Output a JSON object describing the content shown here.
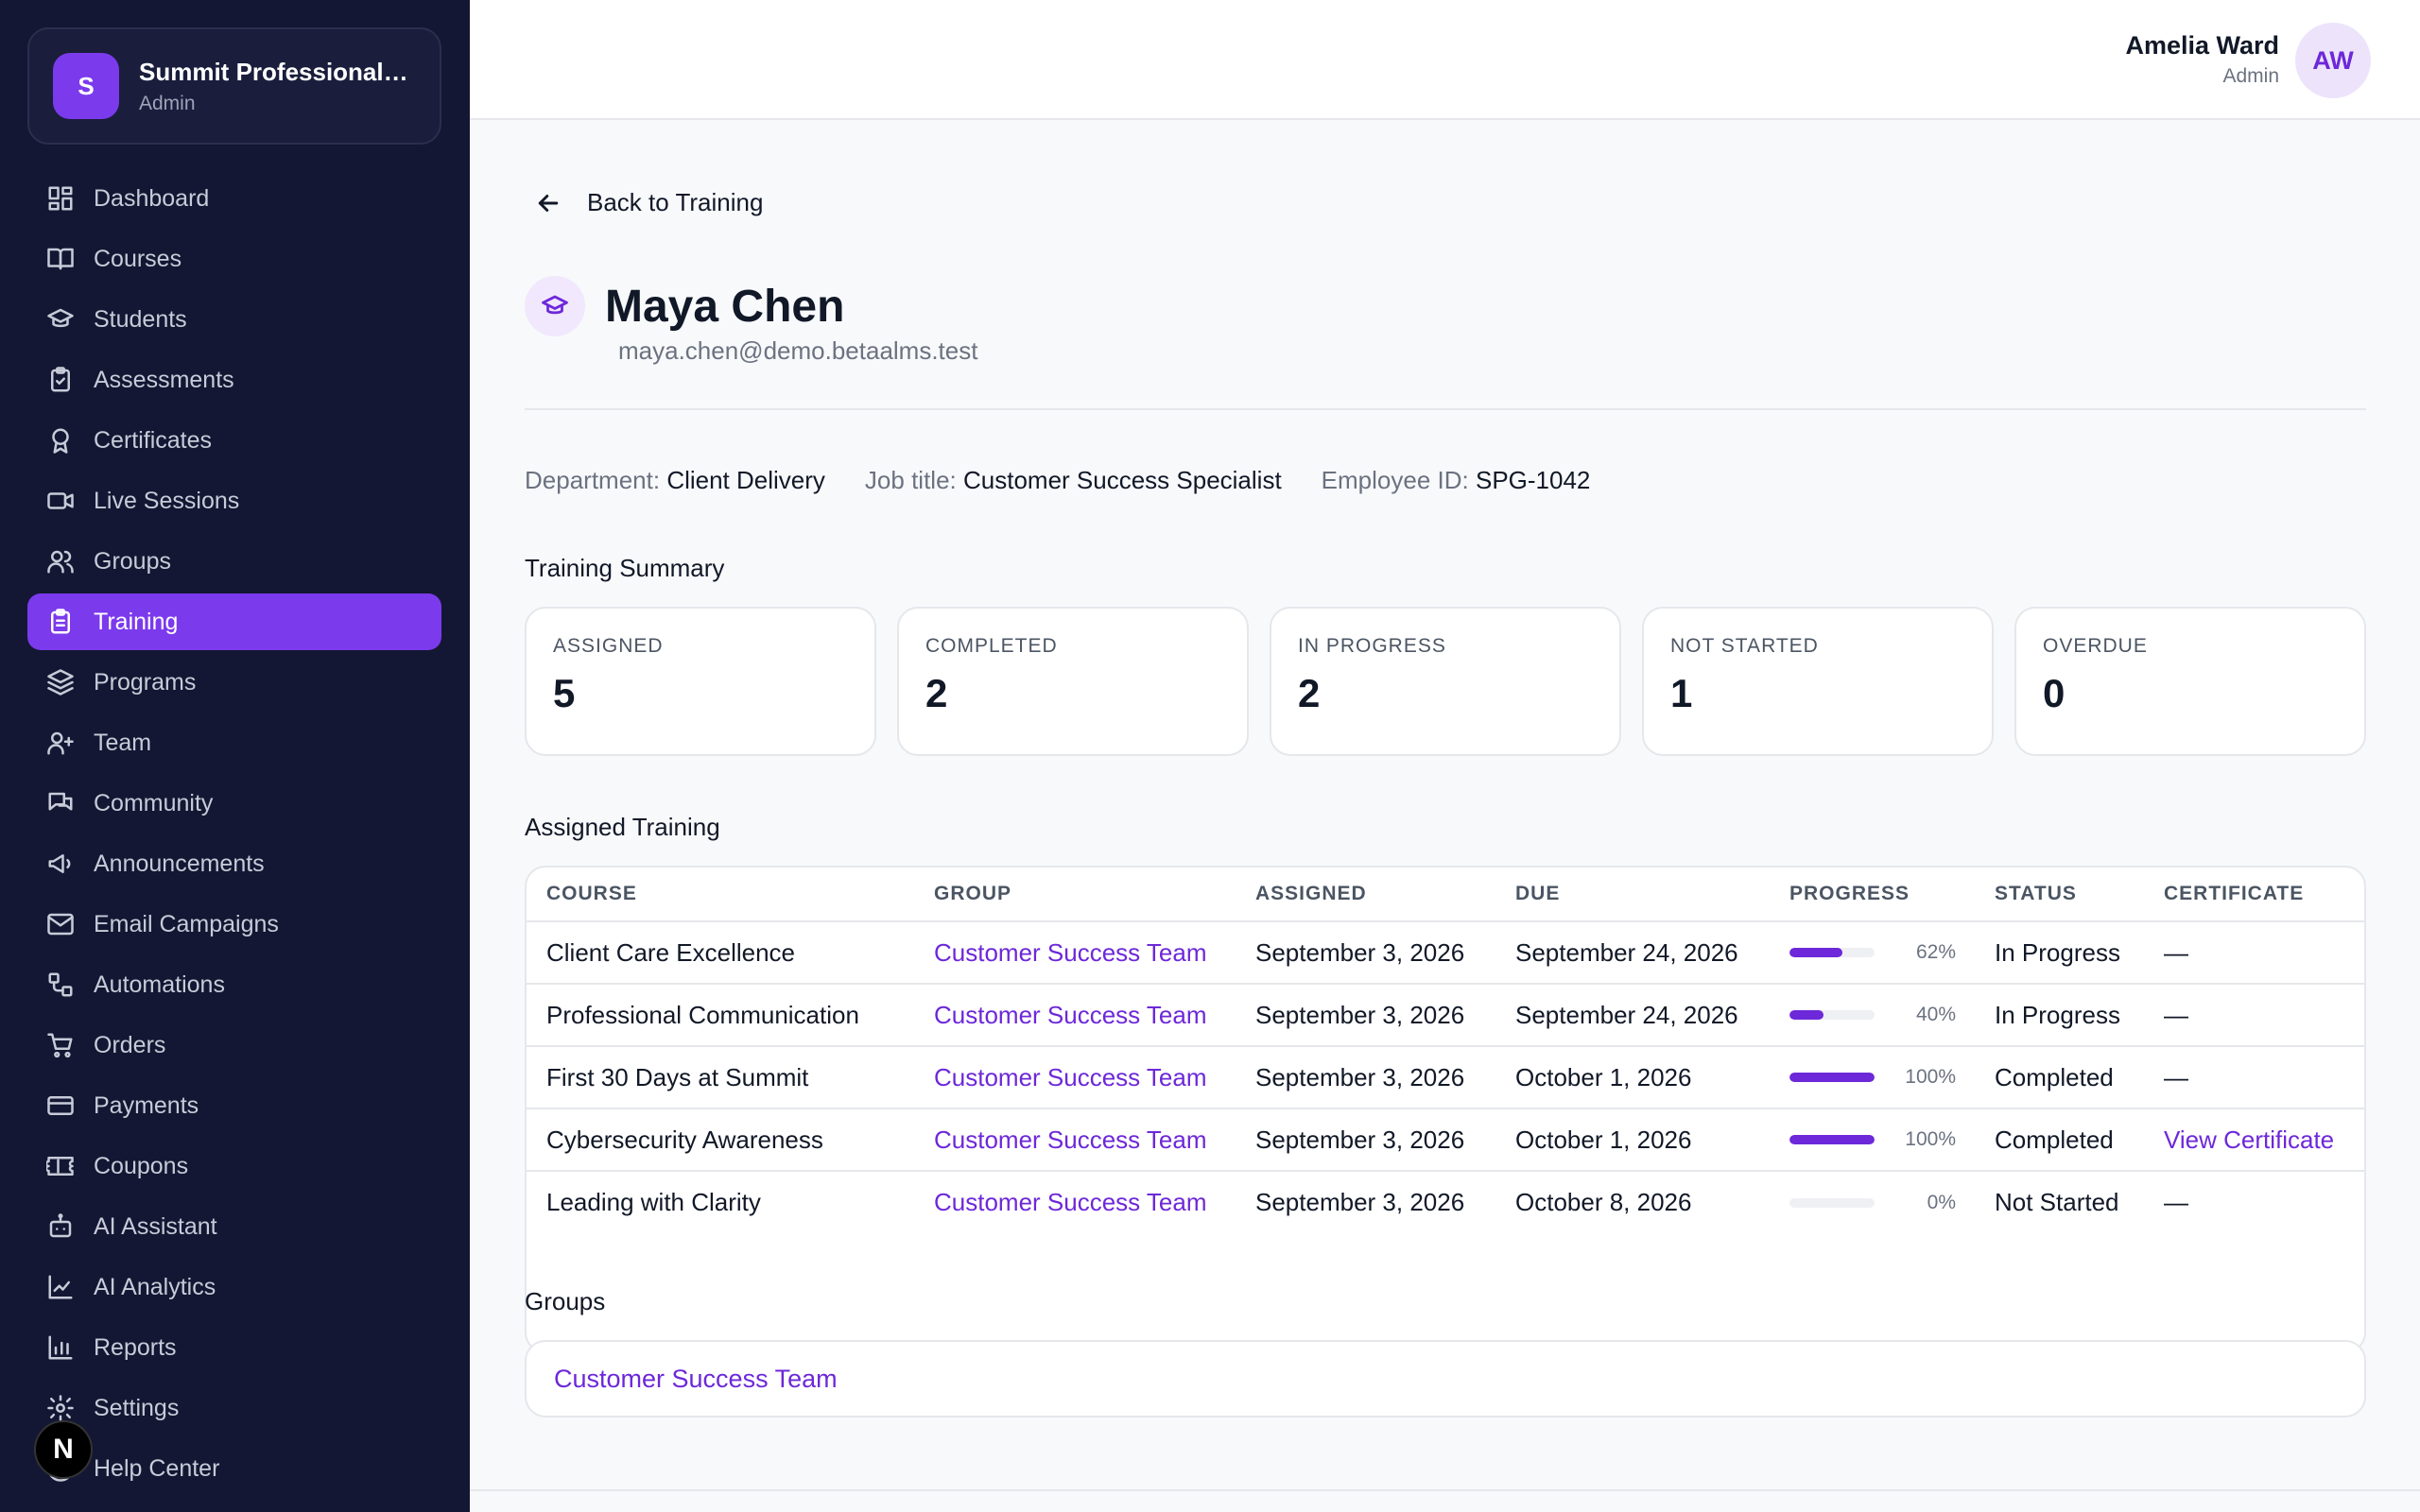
{
  "org": {
    "initial": "S",
    "name": "Summit Professional Group",
    "role": "Admin"
  },
  "nav": [
    {
      "label": "Dashboard",
      "icon": "dashboard-icon"
    },
    {
      "label": "Courses",
      "icon": "book-icon"
    },
    {
      "label": "Students",
      "icon": "graduation-cap-icon"
    },
    {
      "label": "Assessments",
      "icon": "clipboard-check-icon"
    },
    {
      "label": "Certificates",
      "icon": "award-icon"
    },
    {
      "label": "Live Sessions",
      "icon": "video-icon"
    },
    {
      "label": "Groups",
      "icon": "users-icon"
    },
    {
      "label": "Training",
      "icon": "clipboard-list-icon",
      "active": true
    },
    {
      "label": "Programs",
      "icon": "layers-icon"
    },
    {
      "label": "Team",
      "icon": "team-icon"
    },
    {
      "label": "Community",
      "icon": "messages-icon"
    },
    {
      "label": "Announcements",
      "icon": "megaphone-icon"
    },
    {
      "label": "Email Campaigns",
      "icon": "mail-icon"
    },
    {
      "label": "Automations",
      "icon": "workflow-icon"
    },
    {
      "label": "Orders",
      "icon": "cart-icon"
    },
    {
      "label": "Payments",
      "icon": "credit-card-icon"
    },
    {
      "label": "Coupons",
      "icon": "ticket-icon"
    },
    {
      "label": "AI Assistant",
      "icon": "bot-icon"
    },
    {
      "label": "AI Analytics",
      "icon": "line-chart-icon"
    },
    {
      "label": "Reports",
      "icon": "bar-chart-icon"
    },
    {
      "label": "Settings",
      "icon": "gear-icon"
    },
    {
      "label": "Help Center",
      "icon": "help-icon"
    }
  ],
  "dev_badge": "N",
  "user": {
    "name": "Amelia Ward",
    "role": "Admin",
    "initials": "AW"
  },
  "back_label": "Back to Training",
  "profile": {
    "name": "Maya Chen",
    "email": "maya.chen@demo.betaalms.test",
    "department_label": "Department:",
    "department": "Client Delivery",
    "job_title_label": "Job title:",
    "job_title": "Customer Success Specialist",
    "employee_id_label": "Employee ID:",
    "employee_id": "SPG-1042"
  },
  "summary": {
    "title": "Training Summary",
    "stats": [
      {
        "label": "ASSIGNED",
        "value": "5"
      },
      {
        "label": "COMPLETED",
        "value": "2"
      },
      {
        "label": "IN PROGRESS",
        "value": "2"
      },
      {
        "label": "NOT STARTED",
        "value": "1"
      },
      {
        "label": "OVERDUE",
        "value": "0"
      }
    ]
  },
  "assigned": {
    "title": "Assigned Training",
    "columns": [
      "COURSE",
      "GROUP",
      "ASSIGNED",
      "DUE",
      "PROGRESS",
      "STATUS",
      "CERTIFICATE"
    ],
    "rows": [
      {
        "course": "Client Care Excellence",
        "group": "Customer Success Team",
        "assigned": "September 3, 2026",
        "due": "September 24, 2026",
        "progress": 62,
        "progress_label": "62%",
        "status": "In Progress",
        "certificate": "—",
        "cert_link": false
      },
      {
        "course": "Professional Communication",
        "group": "Customer Success Team",
        "assigned": "September 3, 2026",
        "due": "September 24, 2026",
        "progress": 40,
        "progress_label": "40%",
        "status": "In Progress",
        "certificate": "—",
        "cert_link": false
      },
      {
        "course": "First 30 Days at Summit",
        "group": "Customer Success Team",
        "assigned": "September 3, 2026",
        "due": "October 1, 2026",
        "progress": 100,
        "progress_label": "100%",
        "status": "Completed",
        "certificate": "—",
        "cert_link": false
      },
      {
        "course": "Cybersecurity Awareness",
        "group": "Customer Success Team",
        "assigned": "September 3, 2026",
        "due": "October 1, 2026",
        "progress": 100,
        "progress_label": "100%",
        "status": "Completed",
        "certificate": "View Certificate",
        "cert_link": true
      },
      {
        "course": "Leading with Clarity",
        "group": "Customer Success Team",
        "assigned": "September 3, 2026",
        "due": "October 8, 2026",
        "progress": 0,
        "progress_label": "0%",
        "status": "Not Started",
        "certificate": "—",
        "cert_link": false
      }
    ]
  },
  "groups": {
    "title": "Groups",
    "items": [
      "Customer Success Team"
    ]
  },
  "colors": {
    "accent": "#7c3aed",
    "link": "#6d28d9",
    "sidebar": "#131733"
  }
}
